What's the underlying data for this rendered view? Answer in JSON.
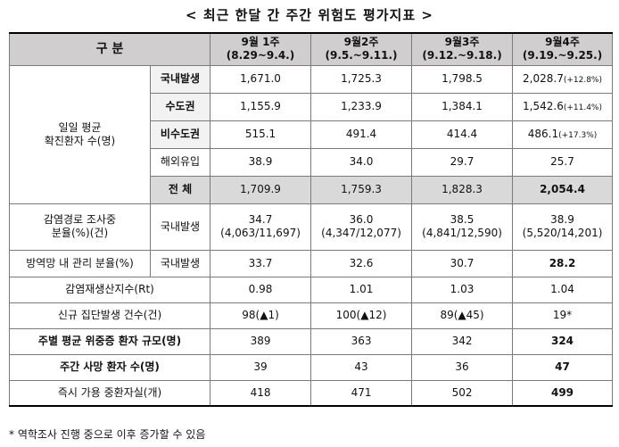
{
  "title": "< 최근 한달 간 주간 위험도 평가지표 >",
  "header": {
    "label": "구 분",
    "weeks": [
      {
        "week": "9월 1주",
        "range": "(8.29~9.4.)"
      },
      {
        "week": "9월2주",
        "range": "(9.5.~9.11.)"
      },
      {
        "week": "9월3주",
        "range": "(9.12.~9.18.)"
      },
      {
        "week": "9월4주",
        "range": "(9.19.~9.25.)"
      }
    ]
  },
  "group1": {
    "label_line1": "일일 평균",
    "label_line2": "확진환자 수(명)",
    "rows": [
      {
        "label": "국내발생",
        "values": [
          "1,671.0",
          "1,725.3",
          "1,798.5",
          "2,028.7"
        ],
        "note": "(+12.8%)"
      },
      {
        "label": "수도권",
        "values": [
          "1,155.9",
          "1,233.9",
          "1,384.1",
          "1,542.6"
        ],
        "note": "(+11.4%)"
      },
      {
        "label": "비수도권",
        "values": [
          "515.1",
          "491.4",
          "414.4",
          "486.1"
        ],
        "note": "(+17.3%)"
      },
      {
        "label": "해외유입",
        "values": [
          "38.9",
          "34.0",
          "29.7",
          "25.7"
        ],
        "note": ""
      },
      {
        "label": "전 체",
        "values": [
          "1,709.9",
          "1,759.3",
          "1,828.3",
          "2,054.4"
        ],
        "note": ""
      }
    ]
  },
  "row_investigation": {
    "label_line1": "감염경로 조사중",
    "label_line2": "분율(%)(건)",
    "sub": "국내발생",
    "values": [
      {
        "pct": "34.7",
        "count": "(4,063/11,697)"
      },
      {
        "pct": "36.0",
        "count": "(4,347/12,077)"
      },
      {
        "pct": "38.5",
        "count": "(4,841/12,590)"
      },
      {
        "pct": "38.9",
        "count": "(5,520/14,201)"
      }
    ]
  },
  "row_managed": {
    "label": "방역망 내 관리 분율(%)",
    "sub": "국내발생",
    "values": [
      "33.7",
      "32.6",
      "30.7",
      "28.2"
    ]
  },
  "row_rt": {
    "label": "감염재생산지수(Rt)",
    "values": [
      "0.98",
      "1.01",
      "1.03",
      "1.04"
    ]
  },
  "row_cluster": {
    "label": "신규 집단발생 건수(건)",
    "values": [
      "98(▲1)",
      "100(▲12)",
      "89(▲45)",
      "19*"
    ]
  },
  "row_severe": {
    "label": "주별 평균 위중증 환자 규모(명)",
    "values": [
      "389",
      "363",
      "342",
      "324"
    ]
  },
  "row_deaths": {
    "label": "주간 사망 환자 수(명)",
    "values": [
      "39",
      "43",
      "36",
      "47"
    ]
  },
  "row_beds": {
    "label": "즉시 가용 중환자실(개)",
    "values": [
      "418",
      "471",
      "502",
      "499"
    ]
  },
  "footnote": "* 역학조사 진행 중으로 이후 증가할 수 있음"
}
